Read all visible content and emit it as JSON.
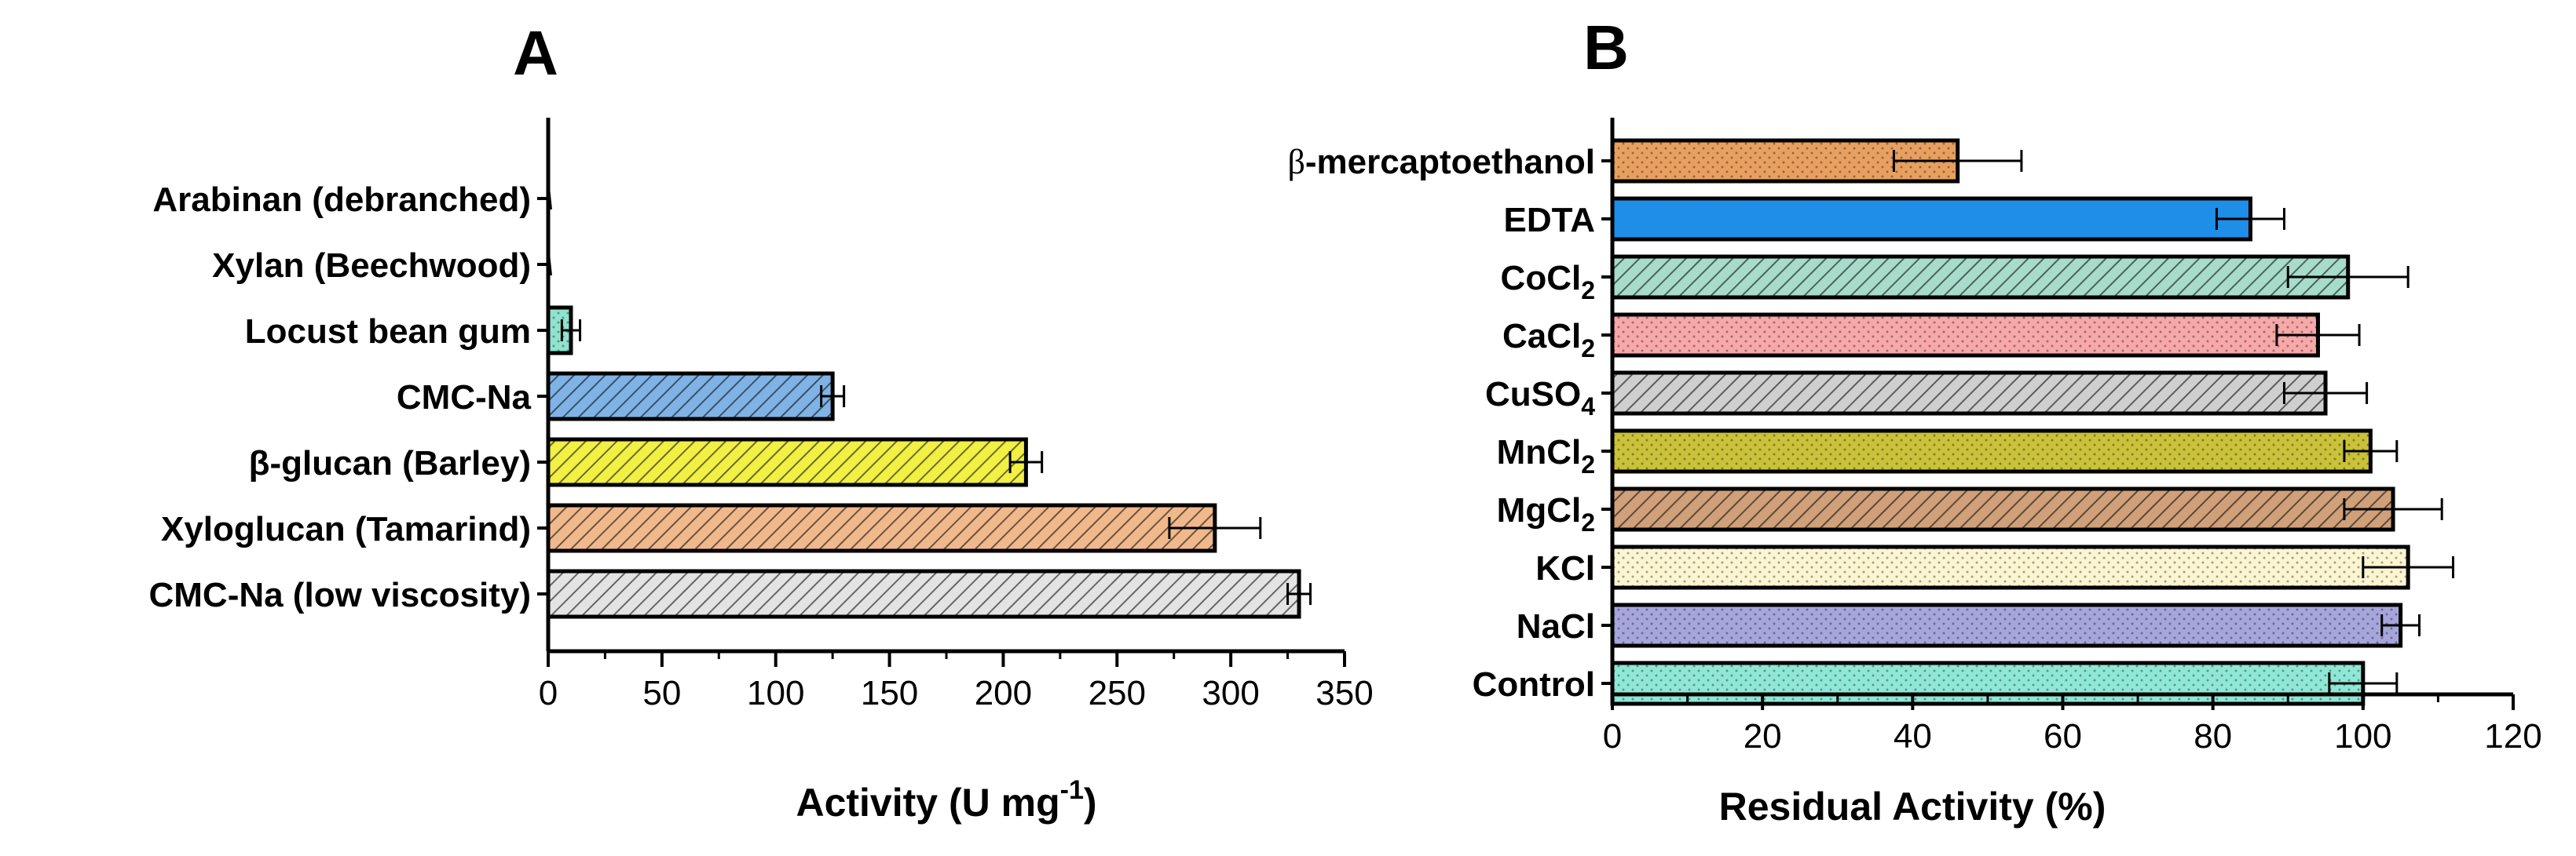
{
  "chart_data": [
    {
      "panel": "A",
      "type": "bar",
      "orientation": "horizontal",
      "title": "A",
      "xlabel": "Activity (U mg-1)",
      "xlabel_parts": {
        "main": "Activity (U mg",
        "sup": "-1",
        "end": ")"
      },
      "ylabel": "",
      "xlim": [
        0,
        350
      ],
      "xticks": [
        0,
        50,
        100,
        150,
        200,
        250,
        300,
        350
      ],
      "minor_step": 25,
      "categories": [
        {
          "label": "Arabinan (debranched)",
          "value": 0,
          "error": 0,
          "color": "#ffffff",
          "pattern": "none"
        },
        {
          "label": "Xylan (Beechwood)",
          "value": 0,
          "error": 0,
          "color": "#ffffff",
          "pattern": "none"
        },
        {
          "label": "Locust bean gum",
          "value": 10,
          "error": 4,
          "color": "#8fe3cf",
          "pattern": "dots"
        },
        {
          "label": "CMC-Na",
          "value": 125,
          "error": 5,
          "color": "#7fb3e6",
          "pattern": "diag"
        },
        {
          "label": "β-glucan (Barley)",
          "value": 210,
          "error": 7,
          "color": "#f2ef45",
          "pattern": "diag"
        },
        {
          "label": "Xyloglucan (Tamarind)",
          "value": 293,
          "error": 20,
          "color": "#f0b98c",
          "pattern": "diag"
        },
        {
          "label": "CMC-Na (low viscosity)",
          "value": 330,
          "error": 5,
          "color": "#e3e3e3",
          "pattern": "diag"
        }
      ]
    },
    {
      "panel": "B",
      "type": "bar",
      "orientation": "horizontal",
      "title": "B",
      "xlabel": "Residual Activity (%)",
      "ylabel": "",
      "xlim": [
        0,
        120
      ],
      "xticks": [
        0,
        20,
        40,
        60,
        80,
        100,
        120
      ],
      "minor_step": 10,
      "categories": [
        {
          "label": "β-mercaptoethanol",
          "greek": "β",
          "rest": "-mercaptoethanol",
          "value": 46,
          "error": 8.5,
          "color": "#e8a060",
          "pattern": "dots"
        },
        {
          "label": "EDTA",
          "value": 85,
          "error": 4.5,
          "color": "#1e8ee8",
          "pattern": "none"
        },
        {
          "label": "CoCl2",
          "base": "CoCl",
          "sub": "2",
          "value": 98,
          "error": 8,
          "color": "#a7dccb",
          "pattern": "diag"
        },
        {
          "label": "CaCl2",
          "base": "CaCl",
          "sub": "2",
          "value": 94,
          "error": 5.5,
          "color": "#f7a8a8",
          "pattern": "dots"
        },
        {
          "label": "CuSO4",
          "base": "CuSO",
          "sub": "4",
          "value": 95,
          "error": 5.5,
          "color": "#cfcfcf",
          "pattern": "diag"
        },
        {
          "label": "MnCl2",
          "base": "MnCl",
          "sub": "2",
          "value": 101,
          "error": 3.5,
          "color": "#c9c23a",
          "pattern": "dots"
        },
        {
          "label": "MgCl2",
          "base": "MgCl",
          "sub": "2",
          "value": 104,
          "error": 6.5,
          "color": "#cfa07a",
          "pattern": "diag"
        },
        {
          "label": "KCl",
          "value": 106,
          "error": 6,
          "color": "#fbf5d2",
          "pattern": "dots"
        },
        {
          "label": "NaCl",
          "value": 105,
          "error": 2.5,
          "color": "#a6a6dc",
          "pattern": "dots"
        },
        {
          "label": "Control",
          "value": 100,
          "error": 4.5,
          "color": "#8fe8d6",
          "pattern": "dots"
        }
      ]
    }
  ]
}
